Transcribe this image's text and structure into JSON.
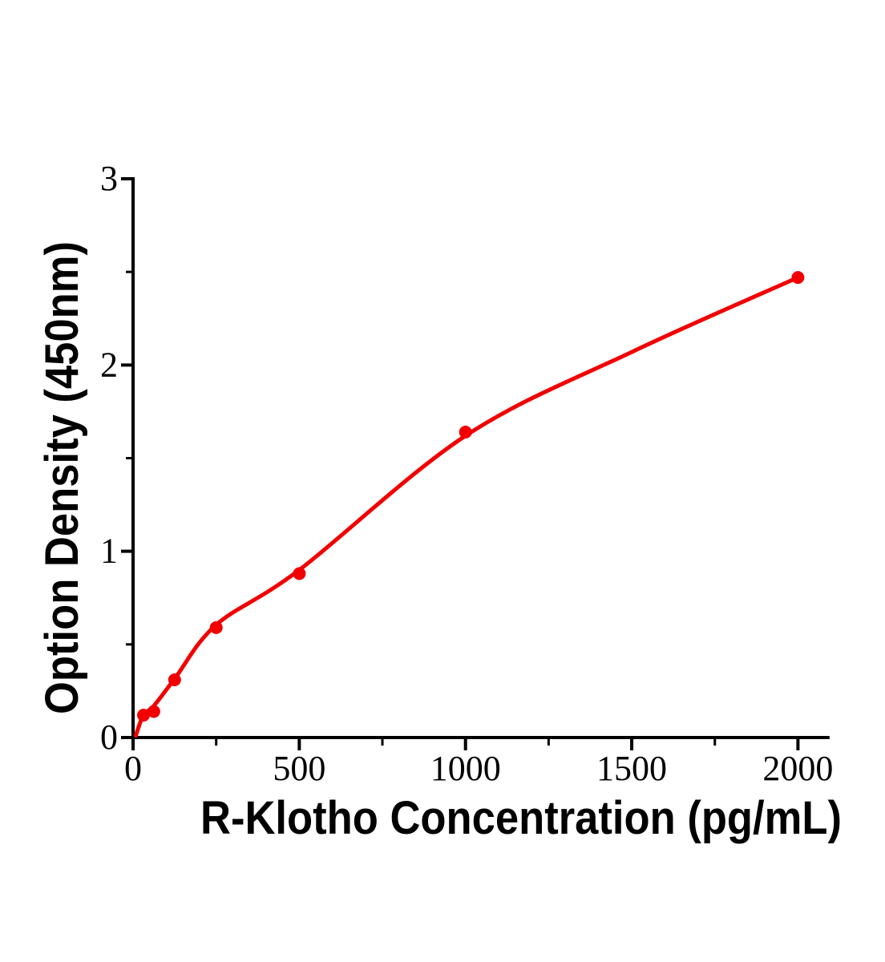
{
  "figure": {
    "background_color": "#ffffff",
    "axis_color": "#000000",
    "accent_color": "#f20000"
  },
  "chart_data": {
    "type": "scatter",
    "title": "",
    "xlabel": "R-Klotho Concentration (pg/mL)",
    "ylabel": "Option Density (450nm)",
    "points": {
      "x": [
        31.25,
        62.5,
        125,
        250,
        500,
        1000,
        2000
      ],
      "y": [
        0.12,
        0.14,
        0.31,
        0.59,
        0.88,
        1.64,
        2.47
      ]
    },
    "fit_curve": {
      "x": [
        8,
        31.25,
        62.5,
        125,
        250,
        500,
        1000,
        1500,
        2000
      ],
      "y": [
        0.01,
        0.12,
        0.17,
        0.315,
        0.605,
        0.9,
        1.62,
        2.07,
        2.47
      ]
    },
    "xlim": [
      0,
      2095
    ],
    "ylim": [
      0,
      3
    ],
    "x_major_ticks": [
      0,
      500,
      1000,
      1500,
      2000
    ],
    "x_minor_ticks": [
      250,
      750,
      1250,
      1750
    ],
    "y_major_ticks": [
      0,
      1,
      2,
      3
    ],
    "y_minor_ticks": [
      0.5,
      1.5,
      2.5
    ],
    "grid": false,
    "legend": null,
    "marker_color": "#f20000",
    "line_color": "#f20000"
  }
}
